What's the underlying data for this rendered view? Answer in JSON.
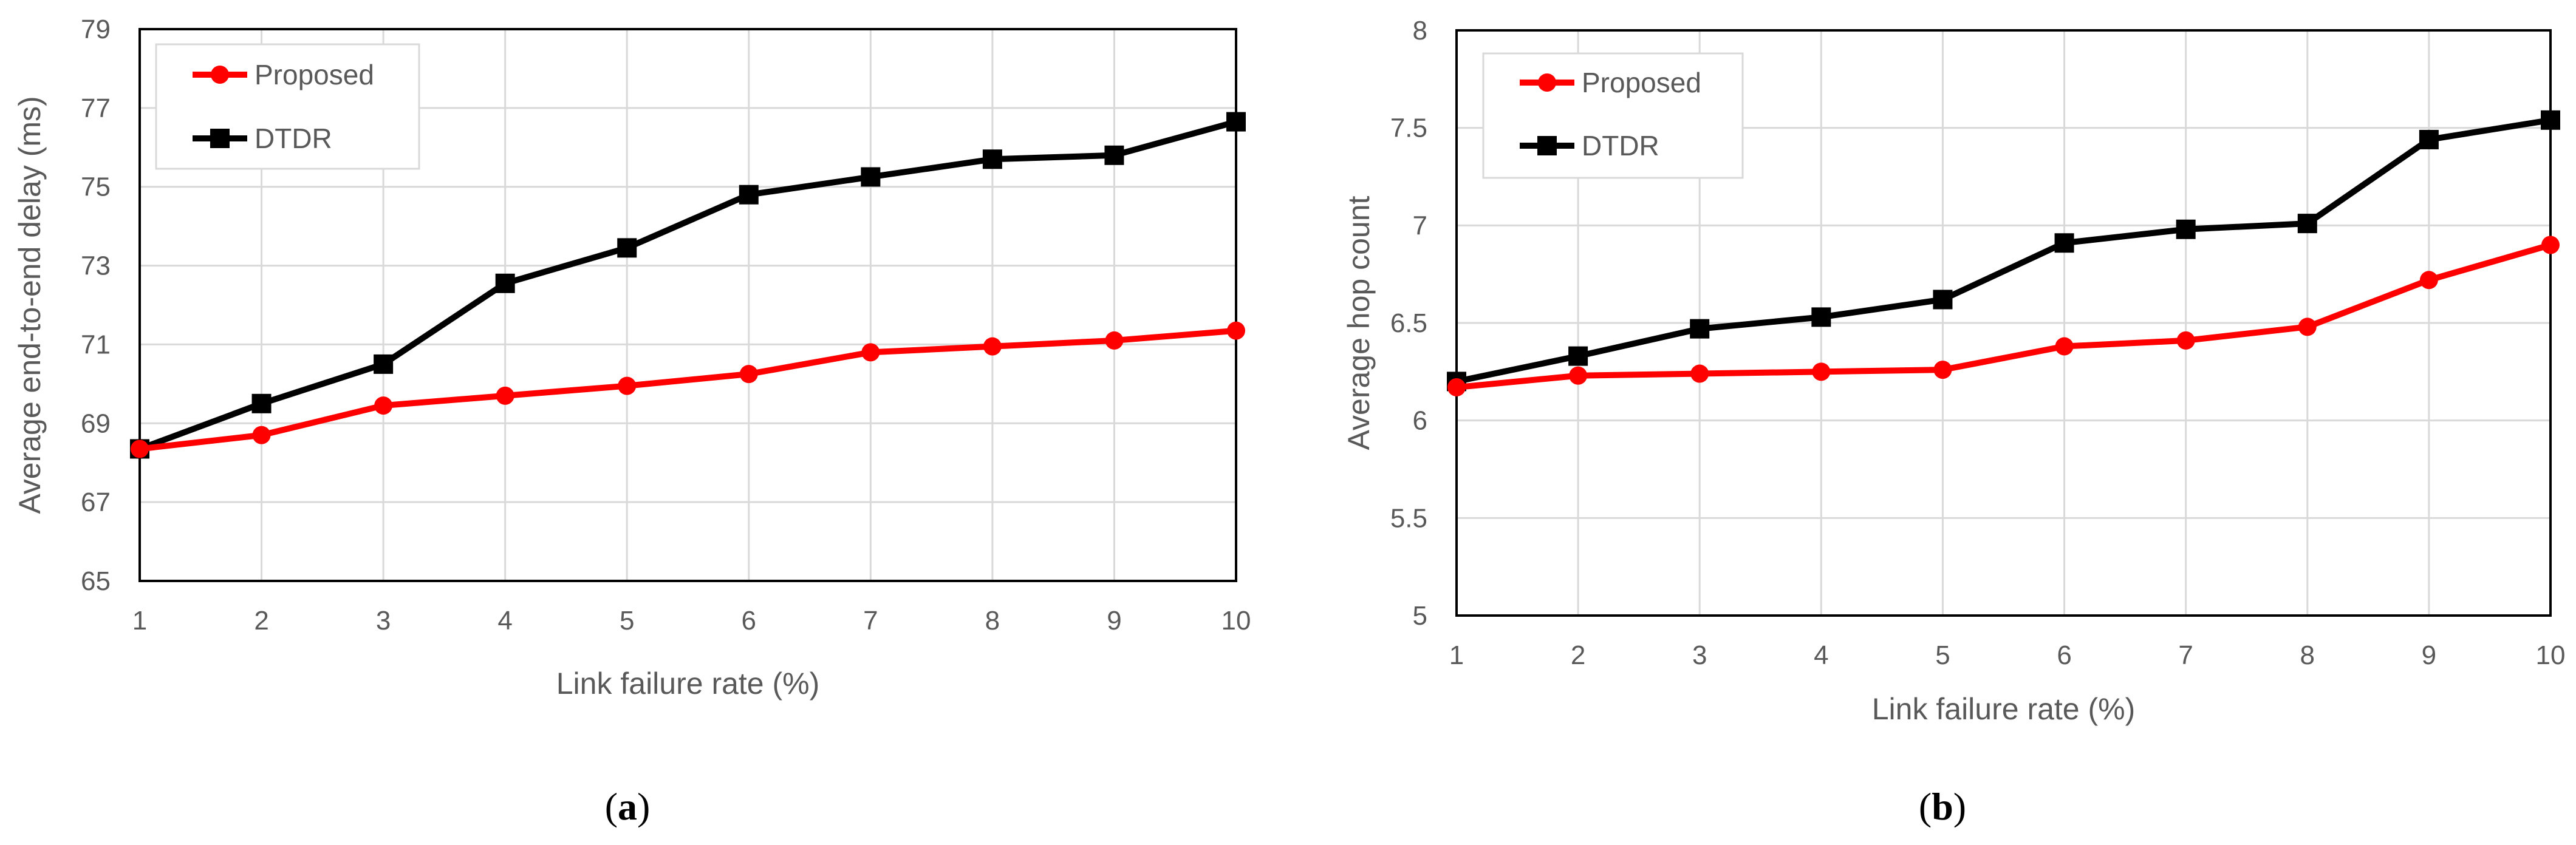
{
  "colors": {
    "proposed": "#ff0000",
    "dtdr": "#000000",
    "grid": "#d9d9d9",
    "axis": "#000000",
    "text": "#595959"
  },
  "chart_data": [
    {
      "type": "line",
      "caption_label": "a",
      "categories": [
        "1",
        "2",
        "3",
        "4",
        "5",
        "6",
        "7",
        "8",
        "9",
        "10"
      ],
      "xlabel": "Link failure rate (%)",
      "ylabel": "Average end-to-end delay (ms)",
      "ylim": [
        65,
        79
      ],
      "yticks": [
        65,
        67,
        69,
        71,
        73,
        75,
        77,
        79
      ],
      "ytick_labels": [
        "65",
        "67",
        "69",
        "71",
        "73",
        "75",
        "77",
        "79"
      ],
      "grid": true,
      "legend": "top-left",
      "series": [
        {
          "name": "Proposed",
          "marker": "circle",
          "color": "#ff0000",
          "values": [
            68.35,
            68.7,
            69.45,
            69.7,
            69.95,
            70.25,
            70.8,
            70.95,
            71.1,
            71.35
          ]
        },
        {
          "name": "DTDR",
          "marker": "square",
          "color": "#000000",
          "values": [
            68.35,
            69.5,
            70.5,
            72.55,
            73.45,
            74.8,
            75.25,
            75.7,
            75.8,
            76.65
          ]
        }
      ]
    },
    {
      "type": "line",
      "caption_label": "b",
      "categories": [
        "1",
        "2",
        "3",
        "4",
        "5",
        "6",
        "7",
        "8",
        "9",
        "10"
      ],
      "xlabel": "Link failure rate (%)",
      "ylabel": "Average hop count",
      "ylim": [
        5,
        8
      ],
      "yticks": [
        5,
        5.5,
        6,
        6.5,
        7,
        7.5,
        8
      ],
      "ytick_labels": [
        "5",
        "5.5",
        "6",
        "6.5",
        "7",
        "7.5",
        "8"
      ],
      "grid": true,
      "legend": "top-left",
      "series": [
        {
          "name": "Proposed",
          "marker": "circle",
          "color": "#ff0000",
          "values": [
            6.17,
            6.23,
            6.24,
            6.25,
            6.26,
            6.38,
            6.41,
            6.48,
            6.72,
            6.9
          ]
        },
        {
          "name": "DTDR",
          "marker": "square",
          "color": "#000000",
          "values": [
            6.2,
            6.33,
            6.47,
            6.53,
            6.62,
            6.91,
            6.98,
            7.01,
            7.44,
            7.54
          ]
        }
      ]
    }
  ]
}
